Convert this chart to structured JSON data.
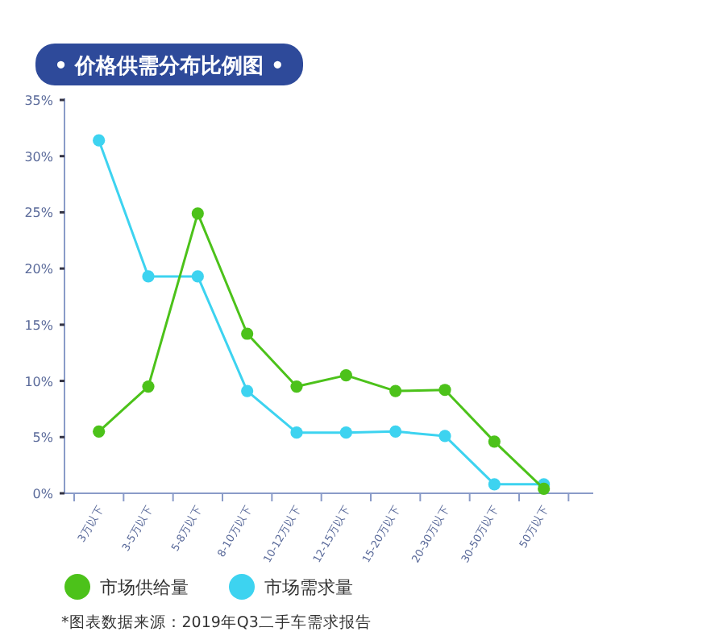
{
  "chart_data": {
    "type": "line",
    "title": "• 价格供需分布比例图 •",
    "categories": [
      "3万以下",
      "3-5万以下",
      "5-8万以下",
      "8-10万以下",
      "10-12万以下",
      "12-15万以下",
      "15-20万以下",
      "20-30万以下",
      "30-50万以下",
      "50万以下"
    ],
    "series": [
      {
        "name": "市场供给量",
        "color": "#4cc21a",
        "values": [
          5.5,
          9.5,
          24.9,
          14.2,
          9.5,
          10.5,
          9.1,
          9.2,
          4.6,
          0.4
        ]
      },
      {
        "name": "市场需求量",
        "color": "#3dd3f0",
        "values": [
          31.4,
          19.3,
          19.3,
          9.1,
          5.4,
          5.4,
          5.5,
          5.1,
          0.8,
          0.8
        ]
      }
    ],
    "ylim": [
      0,
      35
    ],
    "yticks": [
      {
        "value": 0,
        "label": "0%"
      },
      {
        "value": 5,
        "label": "5%"
      },
      {
        "value": 10,
        "label": "10%"
      },
      {
        "value": 15,
        "label": "15%"
      },
      {
        "value": 20,
        "label": "20%"
      },
      {
        "value": 25,
        "label": "25%"
      },
      {
        "value": 30,
        "label": "30%"
      },
      {
        "value": 35,
        "label": "35%"
      }
    ],
    "grid": false,
    "legend": "bottom left",
    "marker": "circle",
    "line_style": "solid",
    "annotations": [
      "*图表数据来源：2019年Q3二手车需求报告"
    ]
  }
}
